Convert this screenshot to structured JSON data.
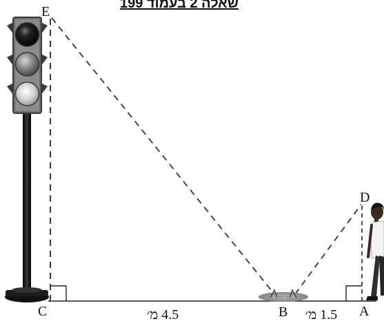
{
  "title": "שאלה 2 בעמוד 199",
  "points": {
    "A": "A",
    "B": "B",
    "C": "C",
    "D": "D",
    "E": "E"
  },
  "measurements": {
    "CB": "4.5 מ׳",
    "BA": "1.5 מ׳"
  },
  "icons": [
    "traffic-light-icon",
    "person-icon",
    "mirror-icon",
    "right-angle-icon"
  ],
  "colors": {
    "line": "#222222",
    "mirror": "#8a8a8a",
    "pole": "#1a1a1a"
  }
}
